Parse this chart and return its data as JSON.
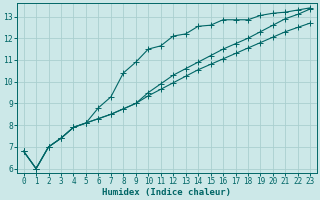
{
  "xlabel": "Humidex (Indice chaleur)",
  "bg_color": "#cce8e8",
  "grid_color": "#aacfcf",
  "line_color": "#006666",
  "xlim": [
    -0.5,
    23.5
  ],
  "ylim": [
    5.8,
    13.6
  ],
  "yticks": [
    6,
    7,
    8,
    9,
    10,
    11,
    12,
    13
  ],
  "xticks": [
    0,
    1,
    2,
    3,
    4,
    5,
    6,
    7,
    8,
    9,
    10,
    11,
    12,
    13,
    14,
    15,
    16,
    17,
    18,
    19,
    20,
    21,
    22,
    23
  ],
  "series1_x": [
    0,
    1,
    2,
    3,
    4,
    5,
    6,
    7,
    8,
    9,
    10,
    11,
    12,
    13,
    14,
    15,
    16,
    17,
    18,
    19,
    20,
    21,
    22,
    23
  ],
  "series1_y": [
    6.8,
    6.0,
    7.0,
    7.4,
    7.9,
    8.1,
    8.8,
    9.3,
    10.4,
    10.9,
    11.5,
    11.65,
    12.1,
    12.2,
    12.55,
    12.6,
    12.85,
    12.85,
    12.85,
    13.05,
    13.15,
    13.2,
    13.3,
    13.4
  ],
  "series2_x": [
    0,
    1,
    2,
    3,
    4,
    5,
    6,
    7,
    8,
    9,
    10,
    11,
    12,
    13,
    14,
    15,
    16,
    17,
    18,
    19,
    20,
    21,
    22,
    23
  ],
  "series2_y": [
    6.8,
    6.0,
    7.0,
    7.4,
    7.9,
    8.1,
    8.3,
    8.5,
    8.75,
    9.0,
    9.35,
    9.65,
    9.95,
    10.25,
    10.55,
    10.8,
    11.05,
    11.3,
    11.55,
    11.8,
    12.05,
    12.3,
    12.5,
    12.7
  ],
  "series3_x": [
    0,
    1,
    2,
    3,
    4,
    5,
    6,
    7,
    8,
    9,
    10,
    11,
    12,
    13,
    14,
    15,
    16,
    17,
    18,
    19,
    20,
    21,
    22,
    23
  ],
  "series3_y": [
    6.8,
    6.0,
    7.0,
    7.4,
    7.9,
    8.1,
    8.3,
    8.5,
    8.75,
    9.0,
    9.5,
    9.9,
    10.3,
    10.6,
    10.9,
    11.2,
    11.5,
    11.75,
    12.0,
    12.3,
    12.6,
    12.9,
    13.1,
    13.35
  ]
}
